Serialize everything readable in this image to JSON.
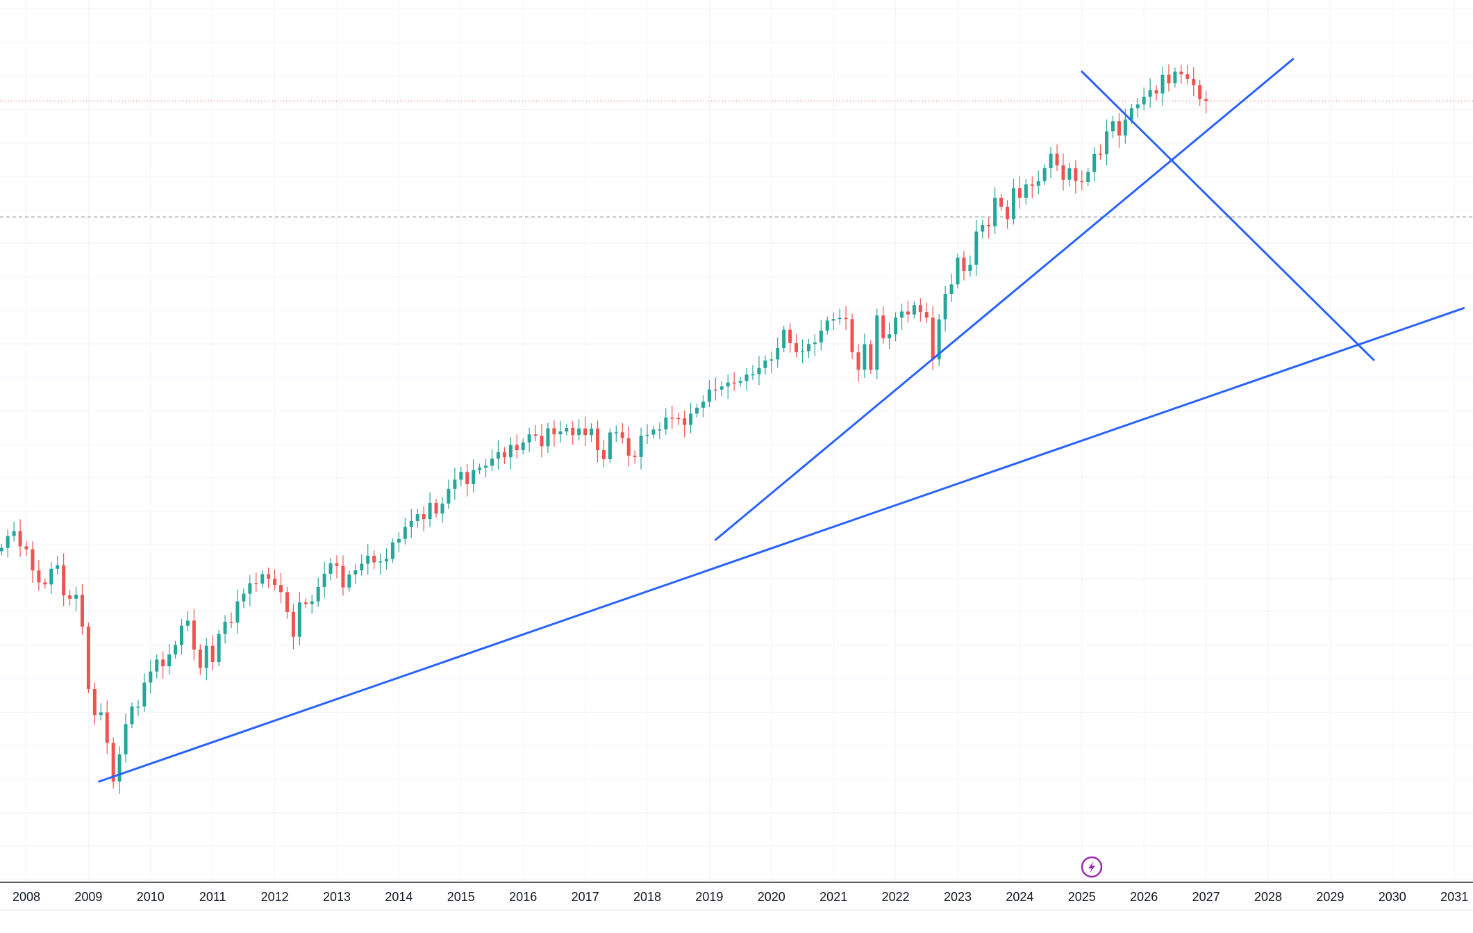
{
  "colors": {
    "background": "#ffffff",
    "grid": "#f0f3fa",
    "up_candle": "#26a69a",
    "down_candle": "#ef5350",
    "trendline": "#2962ff",
    "price_line": "#ef5350",
    "dashed_line": "#9598a1",
    "axis_text": "#131722",
    "axis_line": "#2a2e39",
    "event_icon": "#9c27b0"
  },
  "icons": {
    "event_marker": "lightning-bolt-icon"
  },
  "chart_data": {
    "type": "candlestick",
    "title": "",
    "xlabel": "",
    "ylabel": "",
    "grid": true,
    "log_scale": true,
    "x_range": [
      2007.6,
      2031.15
    ],
    "y_range": [
      700,
      6800
    ],
    "x_ticks": [
      "2008",
      "2009",
      "2010",
      "2011",
      "2012",
      "2013",
      "2014",
      "2015",
      "2016",
      "2017",
      "2018",
      "2019",
      "2020",
      "2021",
      "2022",
      "2023",
      "2024",
      "2025",
      "2026",
      "2027",
      "2028",
      "2029",
      "2030",
      "2031"
    ],
    "current_price": 5580,
    "reference_level": 3950,
    "candles_monthly_close": [
      [
        2007.6,
        1474
      ],
      [
        2007.7,
        1527
      ],
      [
        2007.8,
        1549
      ],
      [
        2007.9,
        1481
      ],
      [
        2008.0,
        1468
      ],
      [
        2008.1,
        1378
      ],
      [
        2008.2,
        1330
      ],
      [
        2008.3,
        1322
      ],
      [
        2008.4,
        1385
      ],
      [
        2008.5,
        1400
      ],
      [
        2008.6,
        1280
      ],
      [
        2008.7,
        1267
      ],
      [
        2008.8,
        1282
      ],
      [
        2008.9,
        1166
      ],
      [
        2009.0,
        968
      ],
      [
        2009.1,
        896
      ],
      [
        2009.2,
        903
      ],
      [
        2009.3,
        825
      ],
      [
        2009.4,
        735
      ],
      [
        2009.5,
        797
      ],
      [
        2009.6,
        872
      ],
      [
        2009.7,
        919
      ],
      [
        2009.8,
        919
      ],
      [
        2009.9,
        987
      ],
      [
        2010.0,
        1020
      ],
      [
        2010.1,
        1057
      ],
      [
        2010.2,
        1036
      ],
      [
        2010.3,
        1073
      ],
      [
        2010.4,
        1104
      ],
      [
        2010.5,
        1169
      ],
      [
        2010.6,
        1187
      ],
      [
        2010.7,
        1089
      ],
      [
        2010.8,
        1031
      ],
      [
        2010.9,
        1101
      ],
      [
        2011.0,
        1049
      ],
      [
        2011.1,
        1141
      ],
      [
        2011.2,
        1183
      ],
      [
        2011.3,
        1180
      ],
      [
        2011.4,
        1257
      ],
      [
        2011.5,
        1286
      ],
      [
        2011.6,
        1327
      ],
      [
        2011.7,
        1325
      ],
      [
        2011.8,
        1363
      ],
      [
        2011.9,
        1345
      ],
      [
        2012.0,
        1320
      ],
      [
        2012.1,
        1292
      ],
      [
        2012.2,
        1218
      ],
      [
        2012.3,
        1131
      ],
      [
        2012.4,
        1253
      ],
      [
        2012.5,
        1247
      ],
      [
        2012.6,
        1257
      ],
      [
        2012.7,
        1312
      ],
      [
        2012.8,
        1365
      ],
      [
        2012.9,
        1408
      ],
      [
        2013.0,
        1397
      ],
      [
        2013.1,
        1310
      ],
      [
        2013.2,
        1362
      ],
      [
        2013.3,
        1379
      ],
      [
        2013.4,
        1406
      ],
      [
        2013.5,
        1440
      ],
      [
        2013.6,
        1412
      ],
      [
        2013.7,
        1416
      ],
      [
        2013.8,
        1426
      ],
      [
        2013.9,
        1498
      ],
      [
        2014.0,
        1514
      ],
      [
        2014.1,
        1569
      ],
      [
        2014.2,
        1597
      ],
      [
        2014.3,
        1630
      ],
      [
        2014.4,
        1606
      ],
      [
        2014.5,
        1685
      ],
      [
        2014.6,
        1633
      ],
      [
        2014.7,
        1682
      ],
      [
        2014.8,
        1757
      ],
      [
        2014.9,
        1806
      ],
      [
        2015.0,
        1848
      ],
      [
        2015.1,
        1782
      ],
      [
        2015.2,
        1859
      ],
      [
        2015.3,
        1872
      ],
      [
        2015.4,
        1883
      ],
      [
        2015.5,
        1923
      ],
      [
        2015.6,
        1960
      ],
      [
        2015.7,
        1931
      ],
      [
        2015.8,
        2003
      ],
      [
        2015.9,
        1972
      ],
      [
        2016.0,
        2018
      ],
      [
        2016.1,
        2067
      ],
      [
        2016.2,
        2058
      ],
      [
        2016.3,
        1995
      ],
      [
        2016.4,
        2105
      ],
      [
        2016.5,
        2067
      ],
      [
        2016.6,
        2085
      ],
      [
        2016.7,
        2107
      ],
      [
        2016.8,
        2063
      ],
      [
        2016.9,
        2104
      ],
      [
        2017.0,
        2063
      ],
      [
        2017.1,
        2103
      ],
      [
        2017.2,
        1972
      ],
      [
        2017.3,
        1920
      ],
      [
        2017.4,
        2079
      ],
      [
        2017.5,
        2080
      ],
      [
        2017.6,
        2044
      ],
      [
        2017.7,
        1940
      ],
      [
        2017.8,
        1932
      ],
      [
        2017.9,
        2059
      ],
      [
        2018.0,
        2065
      ],
      [
        2018.1,
        2097
      ],
      [
        2018.2,
        2098
      ],
      [
        2018.3,
        2173
      ],
      [
        2018.4,
        2170
      ],
      [
        2018.5,
        2168
      ],
      [
        2018.6,
        2126
      ],
      [
        2018.7,
        2199
      ],
      [
        2018.8,
        2238
      ],
      [
        2018.9,
        2278
      ],
      [
        2019.0,
        2363
      ],
      [
        2019.1,
        2362
      ],
      [
        2019.2,
        2384
      ],
      [
        2019.3,
        2412
      ],
      [
        2019.4,
        2411
      ],
      [
        2019.5,
        2423
      ],
      [
        2019.6,
        2470
      ],
      [
        2019.7,
        2472
      ],
      [
        2019.8,
        2519
      ],
      [
        2019.9,
        2575
      ],
      [
        2020.0,
        2584
      ],
      [
        2020.1,
        2673
      ],
      [
        2020.2,
        2823
      ],
      [
        2020.3,
        2713
      ],
      [
        2020.4,
        2640
      ],
      [
        2020.5,
        2648
      ],
      [
        2020.6,
        2705
      ],
      [
        2020.7,
        2718
      ],
      [
        2020.8,
        2816
      ],
      [
        2020.9,
        2901
      ],
      [
        2021.0,
        2914
      ],
      [
        2021.1,
        2924
      ],
      [
        2021.2,
        2914
      ],
      [
        2021.3,
        2640
      ],
      [
        2021.4,
        2506
      ],
      [
        2021.5,
        2704
      ],
      [
        2021.6,
        2506
      ],
      [
        2021.7,
        2945
      ],
      [
        2021.8,
        2752
      ],
      [
        2021.9,
        2784
      ],
      [
        2022.0,
        2926
      ],
      [
        2022.1,
        2980
      ],
      [
        2022.2,
        2954
      ],
      [
        2022.3,
        3038
      ],
      [
        2022.4,
        2976
      ],
      [
        2022.5,
        2926
      ],
      [
        2022.6,
        2584
      ],
      [
        2022.7,
        2912
      ],
      [
        2022.8,
        3141
      ],
      [
        2022.9,
        3231
      ],
      [
        2023.0,
        3500
      ],
      [
        2023.1,
        3363
      ],
      [
        2023.2,
        3426
      ],
      [
        2023.3,
        3781
      ],
      [
        2023.4,
        3856
      ],
      [
        2023.5,
        3843
      ],
      [
        2023.6,
        4181
      ],
      [
        2023.7,
        4070
      ],
      [
        2023.8,
        3924
      ],
      [
        2023.9,
        4302
      ],
      [
        2024.0,
        4181
      ],
      [
        2024.1,
        4352
      ],
      [
        2024.2,
        4332
      ],
      [
        2024.3,
        4395
      ],
      [
        2024.4,
        4567
      ],
      [
        2024.5,
        4768
      ],
      [
        2024.6,
        4605
      ],
      [
        2024.7,
        4412
      ],
      [
        2024.8,
        4566
      ],
      [
        2024.9,
        4395
      ],
      [
        2025.0,
        4383
      ],
      [
        2025.1,
        4515
      ],
      [
        2025.2,
        4767
      ],
      [
        2025.3,
        4760
      ],
      [
        2025.4,
        5096
      ],
      [
        2025.5,
        5254
      ],
      [
        2025.6,
        5035
      ],
      [
        2025.7,
        5278
      ],
      [
        2025.8,
        5460
      ],
      [
        2025.9,
        5522
      ],
      [
        2026.0,
        5648
      ],
      [
        2026.1,
        5762
      ],
      [
        2026.2,
        5705
      ],
      [
        2026.3,
        6032
      ],
      [
        2026.4,
        5881
      ],
      [
        2026.5,
        6090
      ],
      [
        2026.6,
        6040
      ],
      [
        2026.7,
        5955
      ],
      [
        2026.8,
        5850
      ],
      [
        2026.9,
        5611
      ],
      [
        2027.0,
        5580
      ]
    ],
    "annotations": [
      {
        "type": "trendline",
        "label": "",
        "from": [
          2009.17,
          735
        ],
        "to": [
          2031.15,
          3010
        ]
      },
      {
        "type": "trendline",
        "label": "",
        "from": [
          2019.1,
          1510
        ],
        "to": [
          2028.4,
          6320
        ]
      },
      {
        "type": "trendline",
        "label": "",
        "from": [
          2025.0,
          6090
        ],
        "to": [
          2029.7,
          2580
        ]
      }
    ]
  }
}
